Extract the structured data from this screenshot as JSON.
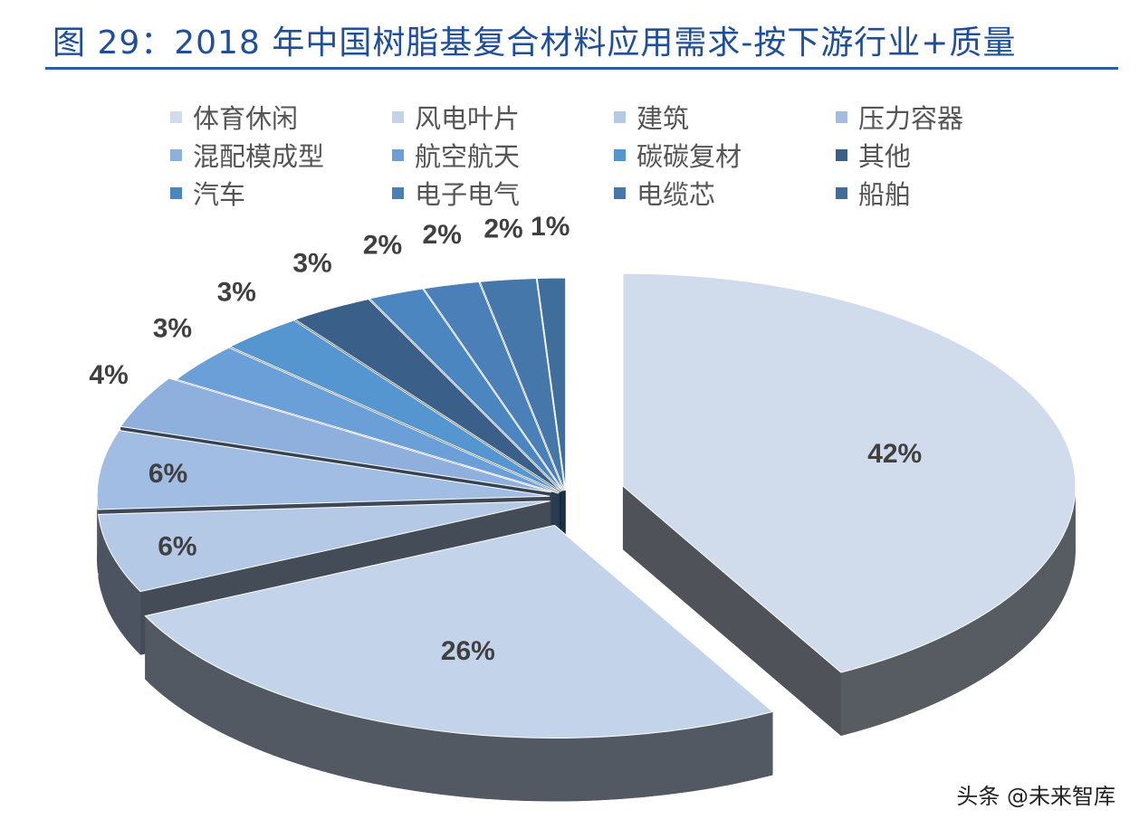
{
  "chart_data": {
    "type": "pie",
    "title": "图 29：2018 年中国树脂基复合材料应用需求-按下游行业+质量",
    "legend_position": "top",
    "categories": [
      "体育休闲",
      "风电叶片",
      "建筑",
      "压力容器",
      "混配模成型",
      "航空航天",
      "碳碳复材",
      "其他",
      "汽车",
      "电子电气",
      "电缆芯",
      "船舶"
    ],
    "values": [
      42,
      26,
      6,
      6,
      4,
      3,
      3,
      3,
      2,
      2,
      2,
      1
    ],
    "labels": [
      "42%",
      "26%",
      "6%",
      "6%",
      "4%",
      "3%",
      "3%",
      "3%",
      "2%",
      "2%",
      "2%",
      "1%"
    ],
    "colors": [
      "#d0dbeb",
      "#c3d4ea",
      "#b4c9e6",
      "#a2bde3",
      "#8fb0dc",
      "#6a9fd7",
      "#5596d0",
      "#3a6089",
      "#4b86c0",
      "#4a7fb8",
      "#4577aa",
      "#3f6d9c"
    ],
    "unit": "%"
  },
  "watermark": "头条 @未来智库"
}
